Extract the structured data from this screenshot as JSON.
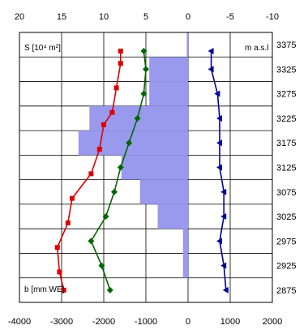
{
  "chart_data": {
    "type": "line",
    "top_axis_ticks": [
      "20",
      "15",
      "10",
      "5",
      "0",
      "-5",
      "-10"
    ],
    "bottom_axis_ticks": [
      "-4000",
      "-3000",
      "-2000",
      "-1000",
      "0",
      "1000",
      "2000"
    ],
    "right_axis_ticks": [
      "3375",
      "3325",
      "3275",
      "3225",
      "3175",
      "3125",
      "3075",
      "3025",
      "2975",
      "2925",
      "2875"
    ],
    "area_label": "S [10⁴ m²]",
    "mb_label": "b [mm WE]",
    "elev_label": "m a.s.l",
    "xlim_bottom": [
      -4000,
      2000
    ],
    "xlim_top": [
      20,
      -10
    ],
    "ylim_elevation": [
      2850,
      3400
    ],
    "grid": true,
    "area_bars": {
      "color": "#9999ee",
      "bands": [
        {
          "from": 3350,
          "to": 3400,
          "value": 0.15
        },
        {
          "from": 3300,
          "to": 3350,
          "value": 4.6
        },
        {
          "from": 3250,
          "to": 3300,
          "value": 4.6
        },
        {
          "from": 3200,
          "to": 3250,
          "value": 11.7
        },
        {
          "from": 3150,
          "to": 3200,
          "value": 13.0
        },
        {
          "from": 3100,
          "to": 3150,
          "value": 7.9
        },
        {
          "from": 3050,
          "to": 3100,
          "value": 5.7
        },
        {
          "from": 3000,
          "to": 3050,
          "value": 3.6
        },
        {
          "from": 2950,
          "to": 3000,
          "value": 0.6
        },
        {
          "from": 2900,
          "to": 2950,
          "value": 0.6
        }
      ]
    },
    "series": [
      {
        "color": "#dd0000",
        "marker": "square",
        "axis": "bottom",
        "x": [
          -1600,
          -1600,
          -1700,
          -1800,
          -2000,
          -2100,
          -2300,
          -2750,
          -2850,
          -3100,
          -3050,
          -2950
        ],
        "y": [
          3362,
          3337,
          3287,
          3237,
          3212,
          3162,
          3112,
          3062,
          3012,
          2962,
          2912,
          2875
        ]
      },
      {
        "color": "#006600",
        "marker": "diamond",
        "axis": "bottom",
        "x": [
          -1050,
          -1000,
          -1050,
          -1200,
          -1400,
          -1600,
          -1750,
          -1950,
          -2300,
          -2050,
          -1850
        ],
        "y": [
          3362,
          3325,
          3275,
          3225,
          3175,
          3125,
          3075,
          3025,
          2975,
          2925,
          2875
        ]
      },
      {
        "color": "#000099",
        "marker": "triangle",
        "axis": "bottom",
        "x": [
          550,
          550,
          700,
          750,
          750,
          750,
          850,
          850,
          750,
          850,
          900
        ],
        "y": [
          3362,
          3325,
          3275,
          3225,
          3175,
          3125,
          3075,
          3025,
          2975,
          2925,
          2875
        ]
      }
    ]
  }
}
